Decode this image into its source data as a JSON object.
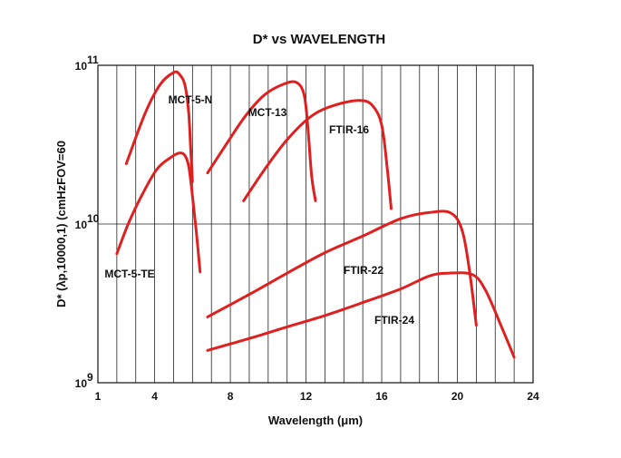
{
  "chart_data": {
    "type": "line",
    "title": "D* vs WAVELENGTH",
    "xlabel": "Wavelength (μm)",
    "ylabel": "D* (λp,10000,1) (cmHzFOV=60",
    "xlim": [
      1,
      24
    ],
    "ylim": [
      1000000000,
      100000000000
    ],
    "yscale": "log",
    "x_ticks": [
      "1",
      "4",
      "8",
      "12",
      "16",
      "20",
      "24"
    ],
    "y_ticks": [
      {
        "base": "10",
        "exp": "11"
      },
      {
        "base": "10",
        "exp": "10"
      },
      {
        "base": "10",
        "exp": "9"
      }
    ],
    "grid": true,
    "series_color": "#e02020",
    "series": [
      {
        "name": "MCT-5-N",
        "x": [
          2.5,
          3.5,
          4.3,
          5.0,
          5.3,
          5.6,
          5.8,
          5.9,
          6.0
        ],
        "y": [
          24000000000.0,
          50000000000.0,
          76000000000.0,
          90000000000.0,
          88000000000.0,
          75000000000.0,
          50000000000.0,
          30000000000.0,
          18500000000.0
        ]
      },
      {
        "name": "MCT-5-TE",
        "x": [
          2.0,
          2.6,
          3.3,
          4.1,
          4.8,
          5.3,
          5.6,
          5.8,
          6.0,
          6.2,
          6.4
        ],
        "y": [
          6500000000.0,
          10000000000.0,
          15000000000.0,
          22000000000.0,
          26000000000.0,
          28000000000.0,
          27000000000.0,
          23000000000.0,
          15000000000.0,
          9000000000.0,
          5000000000.0
        ]
      },
      {
        "name": "MCT-13",
        "x": [
          6.8,
          7.8,
          8.8,
          9.8,
          10.8,
          11.5,
          11.9,
          12.1,
          12.3,
          12.5
        ],
        "y": [
          21000000000.0,
          32000000000.0,
          48000000000.0,
          65000000000.0,
          76000000000.0,
          78000000000.0,
          65000000000.0,
          40000000000.0,
          20000000000.0,
          14000000000.0
        ]
      },
      {
        "name": "FTIR-16",
        "x": [
          8.7,
          9.8,
          11.0,
          12.3,
          13.5,
          14.8,
          15.5,
          16.0,
          16.3,
          16.5
        ],
        "y": [
          14000000000.0,
          22000000000.0,
          34000000000.0,
          48000000000.0,
          56000000000.0,
          60000000000.0,
          56000000000.0,
          42000000000.0,
          22000000000.0,
          12500000000.0
        ]
      },
      {
        "name": "FTIR-22",
        "x": [
          6.8,
          9.0,
          11.0,
          13.0,
          15.0,
          17.0,
          18.5,
          19.6,
          20.2,
          20.6,
          21.0
        ],
        "y": [
          2600000000.0,
          3600000000.0,
          4900000000.0,
          6600000000.0,
          8400000000.0,
          10800000000.0,
          11800000000.0,
          11800000000.0,
          9500000000.0,
          5500000000.0,
          2300000000.0
        ]
      },
      {
        "name": "FTIR-24",
        "x": [
          6.8,
          9.0,
          11.0,
          13.0,
          15.0,
          17.0,
          18.5,
          19.5,
          20.8,
          21.5,
          22.3,
          23.0
        ],
        "y": [
          1600000000.0,
          1900000000.0,
          2250000000.0,
          2650000000.0,
          3200000000.0,
          3900000000.0,
          4700000000.0,
          4900000000.0,
          4800000000.0,
          3800000000.0,
          2300000000.0,
          1450000000.0
        ]
      }
    ]
  }
}
